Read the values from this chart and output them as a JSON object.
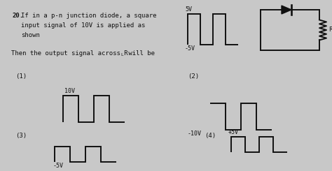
{
  "bg_color": "#c8c8c8",
  "text_color": "#111111",
  "line_color": "#111111",
  "line_width": 1.4,
  "q_num": "20.",
  "q_line1": "If in a p-n junction diode, a square",
  "q_line2": "input signal of 10V is applied as",
  "q_line3": "shown",
  "q_line4": "Then the output signal across R",
  "q_line4_sub": "L",
  "q_line4_end": " will be",
  "inp_label_top": "5V",
  "inp_label_bot": "-5V",
  "inp_x": [
    0,
    0,
    1,
    1,
    2,
    2,
    3,
    3,
    4
  ],
  "inp_y": [
    -1,
    1,
    1,
    -1,
    -1,
    1,
    1,
    -1,
    -1
  ],
  "opt1_label": "(1)",
  "opt1_top_label": "10V",
  "opt1_x": [
    0,
    0,
    1,
    1,
    2,
    2,
    3,
    3,
    4
  ],
  "opt1_y": [
    0,
    1,
    1,
    0,
    0,
    1,
    1,
    0,
    0
  ],
  "opt2_label": "(2)",
  "opt2_bot_label": "-10V",
  "opt2_x": [
    0,
    0,
    1,
    1,
    2,
    2,
    3,
    3,
    4
  ],
  "opt2_y": [
    0,
    0,
    0,
    -1,
    -1,
    0,
    0,
    -1,
    -1
  ],
  "opt3_label": "(3)",
  "opt3_bot_label": "-5V",
  "opt3_x": [
    0,
    0,
    1,
    1,
    2,
    2,
    3,
    3,
    4
  ],
  "opt3_y": [
    -1,
    0,
    0,
    -1,
    -1,
    0,
    0,
    -1,
    -1
  ],
  "opt4_label": "(4)",
  "opt4_top_label": "+5V",
  "opt4_x": [
    0,
    0,
    1,
    1,
    2,
    2,
    3,
    3,
    4
  ],
  "opt4_y": [
    0,
    1,
    1,
    0,
    0,
    1,
    1,
    0,
    0
  ]
}
